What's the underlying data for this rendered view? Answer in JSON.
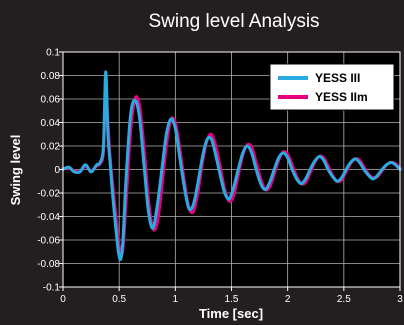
{
  "chart_data": {
    "type": "line",
    "title": "Swing level Analysis",
    "xlabel": "Time [sec]",
    "ylabel": "Swing level",
    "xlim": [
      0,
      3
    ],
    "ylim": [
      -0.1,
      0.1
    ],
    "xticks": [
      "0",
      "0.5",
      "1",
      "1.5",
      "2",
      "2.5",
      "3"
    ],
    "yticks": [
      "0.1",
      "0.08",
      "0.06",
      "0.04",
      "0.02",
      "0",
      "-0.02",
      "-0.04",
      "-0.06",
      "-0.08",
      "-0.1"
    ],
    "grid": true,
    "legend_position": "top-right",
    "background": "#231f20",
    "plot_background": "#000000",
    "grid_color": "#b3b3b3",
    "series": [
      {
        "name": "YESS III",
        "color": "#29abe2",
        "x": [
          0,
          0.05,
          0.1,
          0.15,
          0.2,
          0.25,
          0.3,
          0.33,
          0.36,
          0.38,
          0.4,
          0.42,
          0.45,
          0.5,
          0.53,
          0.56,
          0.6,
          0.64,
          0.68,
          0.72,
          0.76,
          0.8,
          0.84,
          0.88,
          0.92,
          0.96,
          1.0,
          1.04,
          1.08,
          1.12,
          1.16,
          1.2,
          1.24,
          1.28,
          1.32,
          1.36,
          1.4,
          1.44,
          1.48,
          1.52,
          1.56,
          1.6,
          1.64,
          1.68,
          1.72,
          1.76,
          1.8,
          1.84,
          1.88,
          1.92,
          1.96,
          2.0,
          2.04,
          2.08,
          2.12,
          2.16,
          2.2,
          2.24,
          2.28,
          2.32,
          2.36,
          2.4,
          2.44,
          2.48,
          2.52,
          2.56,
          2.6,
          2.64,
          2.68,
          2.72,
          2.76,
          2.8,
          2.84,
          2.88,
          2.92,
          2.96,
          3.0
        ],
        "y": [
          0,
          0.002,
          -0.002,
          -0.002,
          0.004,
          -0.002,
          0.004,
          0.006,
          0.02,
          0.083,
          0.03,
          0.005,
          -0.03,
          -0.074,
          -0.065,
          -0.01,
          0.045,
          0.059,
          0.045,
          0.005,
          -0.035,
          -0.05,
          -0.03,
          0.0,
          0.03,
          0.043,
          0.035,
          0.01,
          -0.015,
          -0.033,
          -0.03,
          -0.012,
          0.01,
          0.025,
          0.026,
          0.012,
          -0.005,
          -0.02,
          -0.025,
          -0.015,
          0.0,
          0.014,
          0.02,
          0.014,
          0.0,
          -0.012,
          -0.017,
          -0.011,
          0.0,
          0.01,
          0.014,
          0.01,
          0.0,
          -0.008,
          -0.012,
          -0.008,
          0.0,
          0.007,
          0.011,
          0.008,
          0.0,
          -0.006,
          -0.01,
          -0.007,
          0.0,
          0.006,
          0.009,
          0.006,
          0.0,
          -0.005,
          -0.008,
          -0.005,
          0.0,
          0.004,
          0.006,
          0.004,
          0.0
        ]
      },
      {
        "name": "YESS IIm",
        "color": "#e6007e",
        "x": [
          0,
          0.05,
          0.1,
          0.15,
          0.2,
          0.25,
          0.3,
          0.33,
          0.36,
          0.38,
          0.4,
          0.42,
          0.45,
          0.5,
          0.53,
          0.56,
          0.6,
          0.64,
          0.68,
          0.72,
          0.76,
          0.8,
          0.84,
          0.88,
          0.92,
          0.96,
          1.0,
          1.04,
          1.08,
          1.12,
          1.16,
          1.2,
          1.24,
          1.28,
          1.32,
          1.36,
          1.4,
          1.44,
          1.48,
          1.52,
          1.56,
          1.6,
          1.64,
          1.68,
          1.72,
          1.76,
          1.8,
          1.84,
          1.88,
          1.92,
          1.96,
          2.0,
          2.04,
          2.08,
          2.12,
          2.16,
          2.2,
          2.24,
          2.28,
          2.32,
          2.36,
          2.4,
          2.44,
          2.48,
          2.52,
          2.56,
          2.6,
          2.64,
          2.68,
          2.72,
          2.76,
          2.8,
          2.84,
          2.88,
          2.92,
          2.96,
          3.0
        ],
        "y": [
          0.001,
          0.001,
          -0.001,
          -0.002,
          0.003,
          -0.001,
          0.003,
          0.005,
          0.015,
          0.07,
          0.04,
          0.01,
          -0.02,
          -0.065,
          -0.07,
          -0.03,
          0.03,
          0.06,
          0.055,
          0.02,
          -0.025,
          -0.05,
          -0.045,
          -0.015,
          0.02,
          0.042,
          0.04,
          0.018,
          -0.01,
          -0.032,
          -0.036,
          -0.02,
          0.005,
          0.024,
          0.03,
          0.02,
          0.002,
          -0.017,
          -0.027,
          -0.022,
          -0.005,
          0.012,
          0.021,
          0.019,
          0.006,
          -0.008,
          -0.017,
          -0.015,
          -0.004,
          0.008,
          0.015,
          0.013,
          0.004,
          -0.006,
          -0.012,
          -0.011,
          -0.003,
          0.006,
          0.011,
          0.01,
          0.003,
          -0.005,
          -0.01,
          -0.009,
          -0.002,
          0.005,
          0.009,
          0.008,
          0.002,
          -0.004,
          -0.007,
          -0.006,
          -0.001,
          0.004,
          0.006,
          0.005,
          0.001
        ]
      }
    ]
  }
}
